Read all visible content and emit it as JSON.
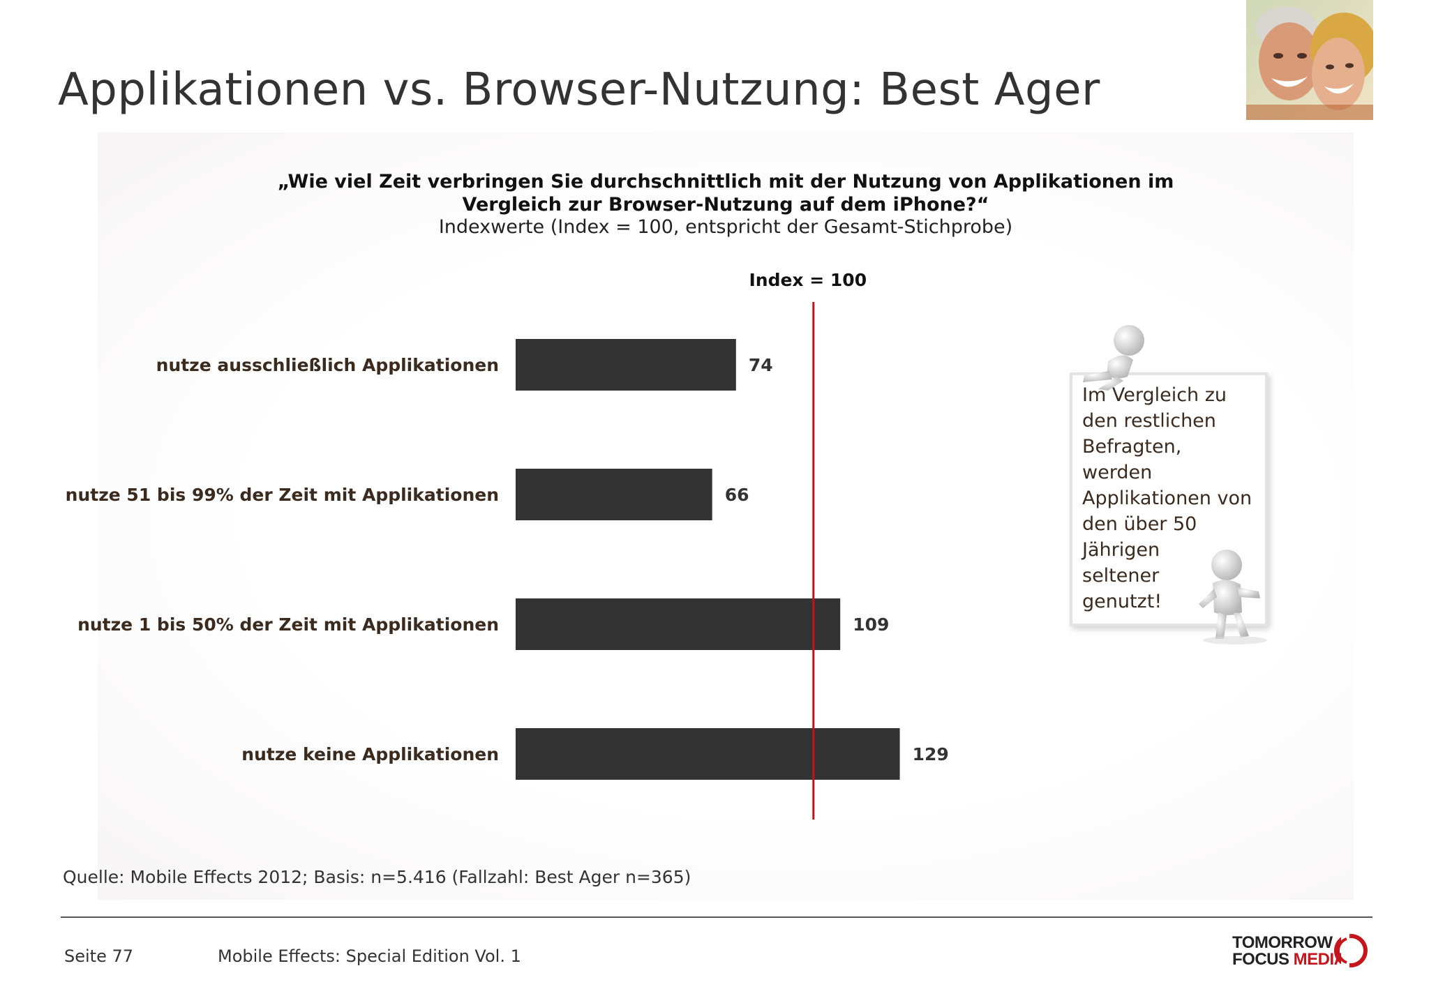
{
  "title": "Applikationen vs. Browser-Nutzung: Best Ager",
  "question_line1": "„Wie viel Zeit verbringen Sie durchschnittlich mit der Nutzung von Applikationen im",
  "question_line2": "Vergleich zur Browser-Nutzung auf dem iPhone?“",
  "subtitle": "Indexwerte (Index = 100, entspricht der Gesamt-Stichprobe)",
  "chart_data": {
    "type": "bar",
    "orientation": "horizontal",
    "categories": [
      "nutze ausschließlich Applikationen",
      "nutze 51 bis 99% der Zeit mit Applikationen",
      "nutze 1 bis 50% der Zeit mit Applikationen",
      "nutze keine Applikationen"
    ],
    "values": [
      74,
      66,
      109,
      129
    ],
    "data_labels": [
      "74",
      "66",
      "109",
      "129"
    ],
    "reference_line": {
      "value": 100,
      "label": "Index = 100",
      "color": "#c0141b"
    },
    "bar_color": "#333333",
    "xlim": [
      0,
      150
    ],
    "grid": false,
    "legend": "none"
  },
  "note": {
    "lines": [
      "Im Vergleich zu",
      "den restlichen",
      "Befragten,",
      "werden",
      "Applikationen von",
      "den über 50",
      "Jährigen",
      "seltener",
      "genutzt!"
    ],
    "icons": [
      "figure-pushing-board-icon",
      "figure-holding-board-icon"
    ]
  },
  "photo_icon": "best-ager-couple-photo",
  "source": "Quelle: Mobile Effects 2012; Basis: n=5.416 (Fallzahl: Best Ager n=365)",
  "footer": {
    "page": "Seite 77",
    "edition": "Mobile Effects: Special Edition Vol. 1",
    "logo_line1": "TOMORROW",
    "logo_focus": "FOCUS",
    "logo_media": "MEDIA",
    "brand_color": "#c5161d"
  }
}
